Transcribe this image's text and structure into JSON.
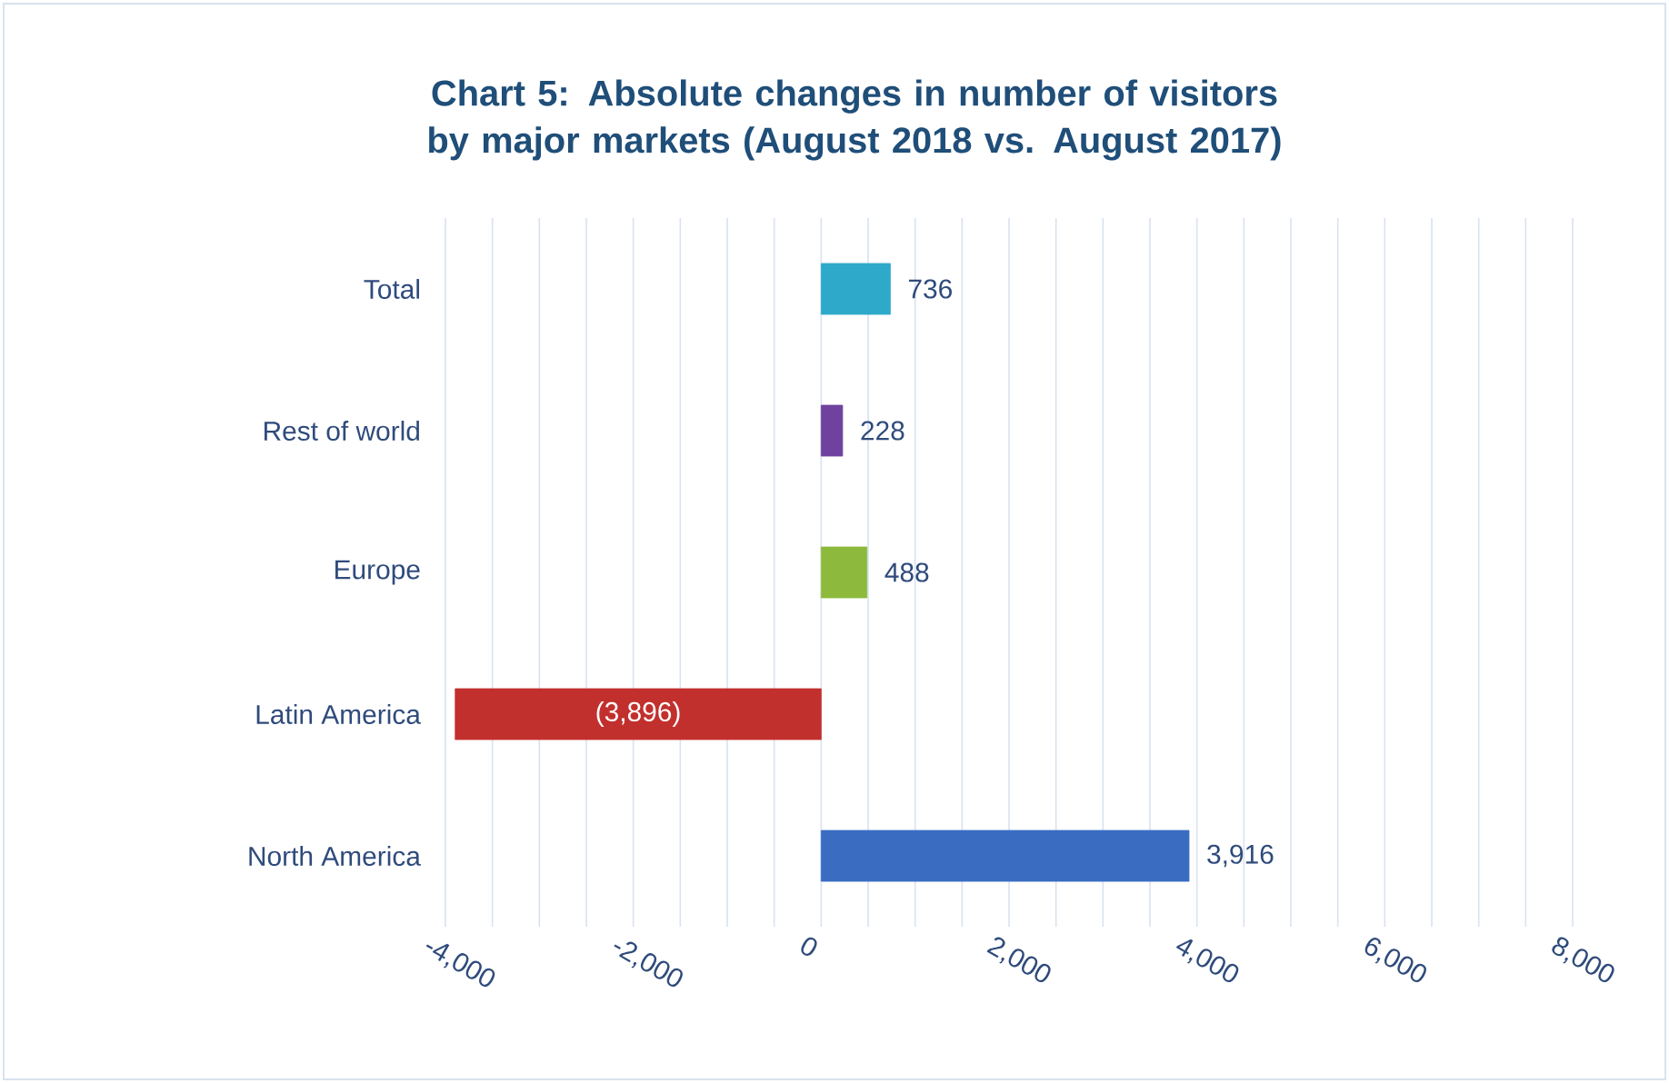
{
  "chart_data": {
    "type": "bar",
    "orientation": "horizontal",
    "title": "Chart 5: Absolute changes in number of visitors by major markets (August 2018 vs. August 2017)",
    "categories": [
      "Total",
      "Rest of world",
      "Europe",
      "Latin America",
      "North America"
    ],
    "values": [
      736,
      228,
      488,
      -3896,
      3916
    ],
    "colors": [
      "#2fa9c9",
      "#7042a0",
      "#8dba3d",
      "#c2302d",
      "#3a6dc2"
    ],
    "value_labels": [
      "736",
      "228",
      "488",
      "(3,896)",
      "3,916"
    ],
    "xlim": [
      -4000,
      8000
    ],
    "xticks": [
      {
        "value": -4000,
        "label": "-4,000"
      },
      {
        "value": -3500,
        "label": null
      },
      {
        "value": -3000,
        "label": null
      },
      {
        "value": -2500,
        "label": null
      },
      {
        "value": -2000,
        "label": "-2,000"
      },
      {
        "value": -1500,
        "label": null
      },
      {
        "value": -1000,
        "label": null
      },
      {
        "value": -500,
        "label": null
      },
      0,
      {
        "value": 500,
        "label": null
      },
      {
        "value": 1000,
        "label": null
      },
      {
        "value": 1500,
        "label": null
      },
      {
        "value": 2000,
        "label": "2,000"
      },
      {
        "value": 2500,
        "label": null
      },
      {
        "value": 3000,
        "label": null
      },
      {
        "value": 3500,
        "label": null
      },
      {
        "value": 4000,
        "label": "4,000"
      },
      {
        "value": 4500,
        "label": null
      },
      {
        "value": 5000,
        "label": null
      },
      {
        "value": 5500,
        "label": null
      },
      {
        "value": 6000,
        "label": "6,000"
      },
      {
        "value": 6500,
        "label": null
      },
      {
        "value": 7000,
        "label": null
      },
      {
        "value": 7500,
        "label": null
      },
      {
        "value": 8000,
        "label": "8,000"
      }
    ],
    "grid": "x"
  }
}
